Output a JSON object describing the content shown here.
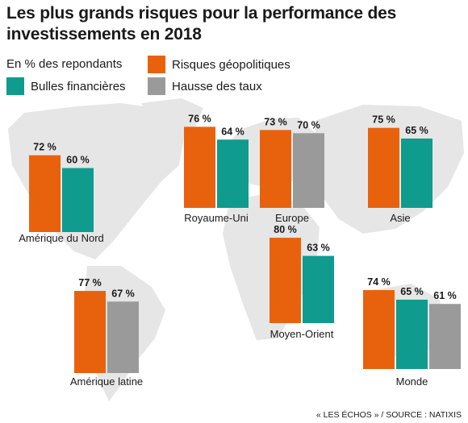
{
  "title": "Les plus grands risques pour la performance des investissements en 2018",
  "subtitle": "En % des repondants",
  "source": "« LES ÉCHOS » / SOURCE : NATIXIS",
  "legend": [
    {
      "label": "Risques géopolitiques",
      "color": "#e8620e"
    },
    {
      "label": "Bulles financières",
      "color": "#0f9b8e"
    },
    {
      "label": "Hausse des taux",
      "color": "#9a9a9a"
    }
  ],
  "map": {
    "ocean_color": "#ffffff",
    "land_color": "#e6e6e6",
    "label": "world-map-background"
  },
  "chart_data": {
    "type": "bar",
    "unit": "%",
    "series_names": [
      "Risques géopolitiques",
      "Bulles financières",
      "Hausse des taux"
    ],
    "groups": [
      {
        "region": "Amérique du Nord",
        "bars": [
          {
            "series": "Risques géopolitiques",
            "value": 72,
            "label": "72 %"
          },
          {
            "series": "Bulles financières",
            "value": 60,
            "label": "60 %"
          }
        ]
      },
      {
        "region": "Royaume-Uni",
        "bars": [
          {
            "series": "Risques géopolitiques",
            "value": 76,
            "label": "76 %"
          },
          {
            "series": "Bulles financières",
            "value": 64,
            "label": "64 %"
          }
        ]
      },
      {
        "region": "Europe",
        "bars": [
          {
            "series": "Risques géopolitiques",
            "value": 73,
            "label": "73 %"
          },
          {
            "series": "Hausse des taux",
            "value": 70,
            "label": "70 %"
          }
        ]
      },
      {
        "region": "Asie",
        "bars": [
          {
            "series": "Risques géopolitiques",
            "value": 75,
            "label": "75 %"
          },
          {
            "series": "Bulles financières",
            "value": 65,
            "label": "65 %"
          }
        ]
      },
      {
        "region": "Moyen-Orient",
        "bars": [
          {
            "series": "Risques géopolitiques",
            "value": 80,
            "label": "80 %"
          },
          {
            "series": "Bulles financières",
            "value": 63,
            "label": "63 %"
          }
        ]
      },
      {
        "region": "Amérique latine",
        "bars": [
          {
            "series": "Risques géopolitiques",
            "value": 77,
            "label": "77 %"
          },
          {
            "series": "Hausse des taux",
            "value": 67,
            "label": "67 %"
          }
        ]
      },
      {
        "region": "Monde",
        "bars": [
          {
            "series": "Risques géopolitiques",
            "value": 74,
            "label": "74 %"
          },
          {
            "series": "Bulles financières",
            "value": 65,
            "label": "65 %"
          },
          {
            "series": "Hausse des taux",
            "value": 61,
            "label": "61 %"
          }
        ]
      }
    ]
  }
}
